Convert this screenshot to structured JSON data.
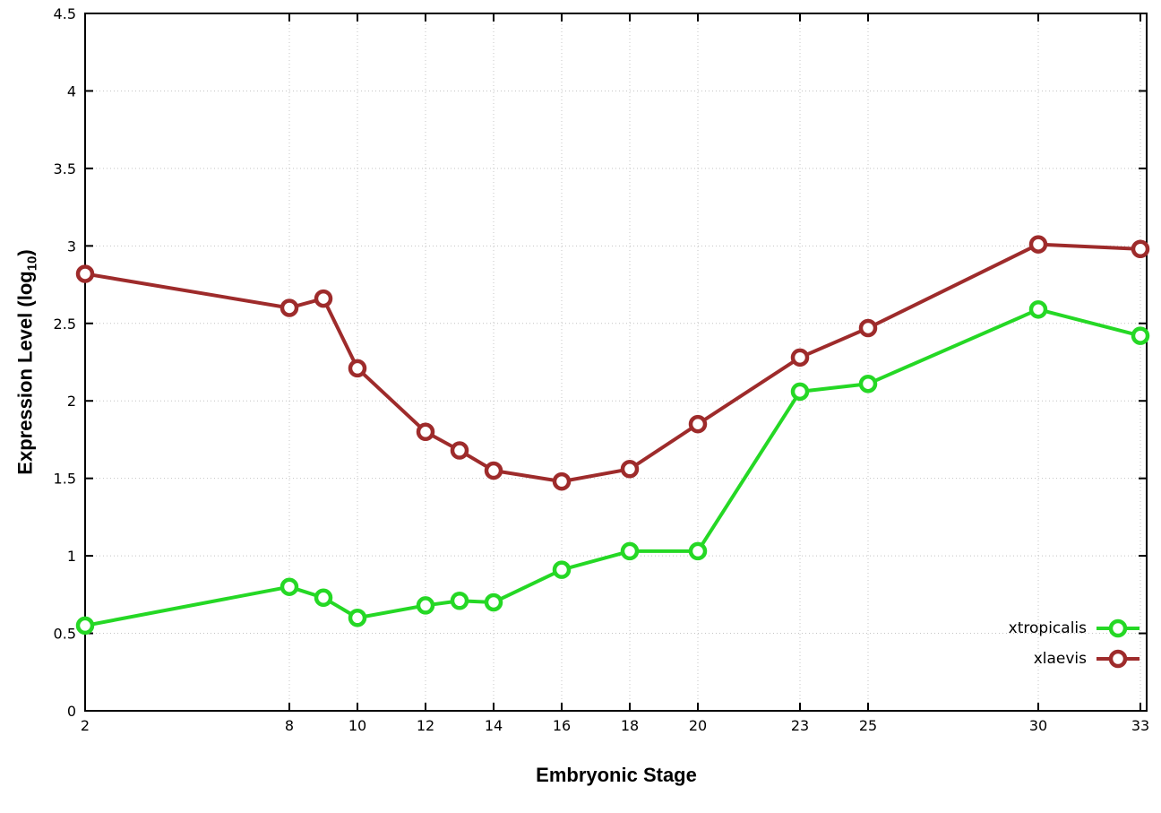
{
  "chart_data": {
    "type": "line",
    "title": "",
    "xlabel": "Embryonic Stage",
    "ylabel": {
      "prefix": "Expression Level (log",
      "sub": "10",
      "suffix": ")"
    },
    "xlim": [
      2,
      33
    ],
    "ylim": [
      0,
      4.5
    ],
    "grid": true,
    "grid_color": "#c4c4c4",
    "axis_color": "#000000",
    "legend_position": "bottom-right",
    "xtick_values": [
      2,
      8,
      10,
      12,
      14,
      16,
      18,
      20,
      23,
      25,
      30,
      33
    ],
    "xtick_labels": [
      "2",
      "8",
      "10",
      "12",
      "14",
      "16",
      "18",
      "20",
      "23",
      "25",
      "30",
      "33"
    ],
    "ytick_values": [
      0,
      0.5,
      1,
      1.5,
      2,
      2.5,
      3,
      3.5,
      4,
      4.5
    ],
    "ytick_labels": [
      "0",
      "0.5",
      "1",
      "1.5",
      "2",
      "2.5",
      "3",
      "3.5",
      "4",
      "4.5"
    ],
    "x": [
      2,
      8,
      9,
      10,
      12,
      13,
      14,
      16,
      18,
      20,
      23,
      25,
      30,
      33
    ],
    "series": [
      {
        "name": "xtropicalis",
        "color": "#25d825",
        "values": [
          0.55,
          0.8,
          0.73,
          0.6,
          0.68,
          0.71,
          0.7,
          0.91,
          1.03,
          1.03,
          2.06,
          2.11,
          2.59,
          2.42
        ]
      },
      {
        "name": "xlaevis",
        "color": "#9e2b2b",
        "values": [
          2.82,
          2.6,
          2.66,
          2.21,
          1.8,
          1.68,
          1.55,
          1.48,
          1.56,
          1.85,
          2.28,
          2.47,
          3.01,
          2.98
        ]
      }
    ]
  }
}
